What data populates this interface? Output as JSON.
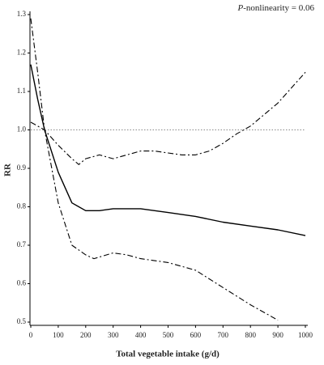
{
  "chart_data": {
    "type": "line",
    "annotation": {
      "italic": "P",
      "text": "-nonlinearity = 0.06"
    },
    "xlabel": "Total vegetable intake (g/d)",
    "ylabel": "RR",
    "xlim": [
      0,
      1000
    ],
    "xticks": [
      0,
      100,
      200,
      300,
      400,
      500,
      600,
      700,
      800,
      900,
      1000
    ],
    "ylim": [
      0.5,
      1.3
    ],
    "yticks": [
      0.5,
      0.6,
      0.7,
      0.8,
      0.9,
      {
        "value": 1,
        "label": "1.0"
      },
      1.1,
      1.2,
      1.3
    ],
    "reference_line": 1,
    "series": [
      {
        "color": "#000000",
        "style": "solid",
        "x": [
          0,
          25,
          50,
          100,
          150,
          200,
          250,
          300,
          350,
          400,
          500,
          600,
          700,
          800,
          900,
          1000
        ],
        "values": [
          1.17,
          1.08,
          1.0,
          0.89,
          0.81,
          0.79,
          0.79,
          0.795,
          0.795,
          0.795,
          0.785,
          0.775,
          0.76,
          0.75,
          0.74,
          0.725
        ]
      },
      {
        "color": "#000000",
        "style": "dashdot",
        "x": [
          0,
          50,
          100,
          150,
          175,
          200,
          250,
          300,
          350,
          400,
          450,
          500,
          550,
          600,
          650,
          700,
          750,
          800,
          900,
          1000
        ],
        "values": [
          1.02,
          1.0,
          0.96,
          0.925,
          0.91,
          0.925,
          0.935,
          0.925,
          0.935,
          0.945,
          0.945,
          0.94,
          0.935,
          0.935,
          0.945,
          0.965,
          0.99,
          1.01,
          1.07,
          1.15
        ]
      },
      {
        "color": "#000000",
        "style": "dashdot",
        "x": [
          0,
          25,
          50,
          100,
          150,
          200,
          230,
          300,
          350,
          400,
          500,
          600,
          700,
          800,
          900
        ],
        "values": [
          1.29,
          1.15,
          1.0,
          0.81,
          0.7,
          0.675,
          0.665,
          0.68,
          0.675,
          0.665,
          0.655,
          0.635,
          0.59,
          0.545,
          0.505
        ]
      }
    ]
  }
}
